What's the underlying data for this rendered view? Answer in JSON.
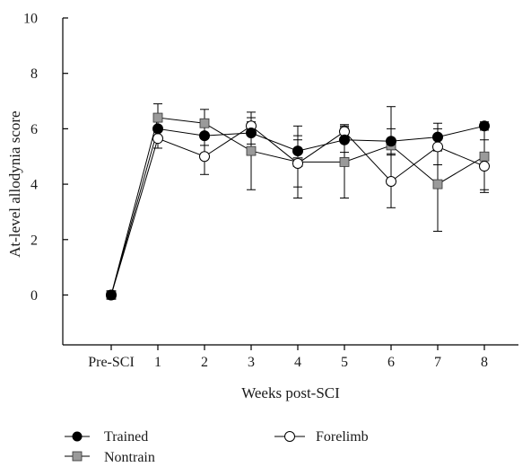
{
  "chart_data": {
    "type": "line",
    "title": "",
    "xlabel": "Weeks post-SCI",
    "ylabel": "At-level allodynia score",
    "categories": [
      "Pre-SCI",
      "1",
      "2",
      "3",
      "4",
      "5",
      "6",
      "7",
      "8"
    ],
    "ylim": [
      -1.8,
      10
    ],
    "yticks": [
      0,
      2,
      4,
      6,
      8,
      10
    ],
    "grid": false,
    "legend_position": "bottom",
    "series": [
      {
        "name": "Trained",
        "marker": "filled-circle",
        "color": "#000000",
        "values": [
          0,
          6.0,
          5.75,
          5.85,
          5.2,
          5.6,
          5.55,
          5.7,
          6.1
        ],
        "errors": [
          0,
          0.25,
          0.35,
          0.4,
          0.55,
          0.45,
          0.45,
          0.5,
          0.15
        ]
      },
      {
        "name": "Nontrain",
        "marker": "gray-square",
        "color": "#9a9a9a",
        "values": [
          0,
          6.4,
          6.2,
          5.2,
          4.8,
          4.8,
          5.4,
          4.0,
          5.0
        ],
        "errors": [
          0,
          0.5,
          0.5,
          1.4,
          1.3,
          1.3,
          1.4,
          1.7,
          1.2
        ]
      },
      {
        "name": "Forelimb",
        "marker": "open-circle",
        "color": "#ffffff",
        "values": [
          0,
          5.65,
          5.0,
          6.1,
          4.75,
          5.9,
          4.1,
          5.35,
          4.65
        ],
        "errors": [
          0,
          0.35,
          0.65,
          0.3,
          0.85,
          0.25,
          0.95,
          0.65,
          0.95
        ]
      }
    ]
  }
}
